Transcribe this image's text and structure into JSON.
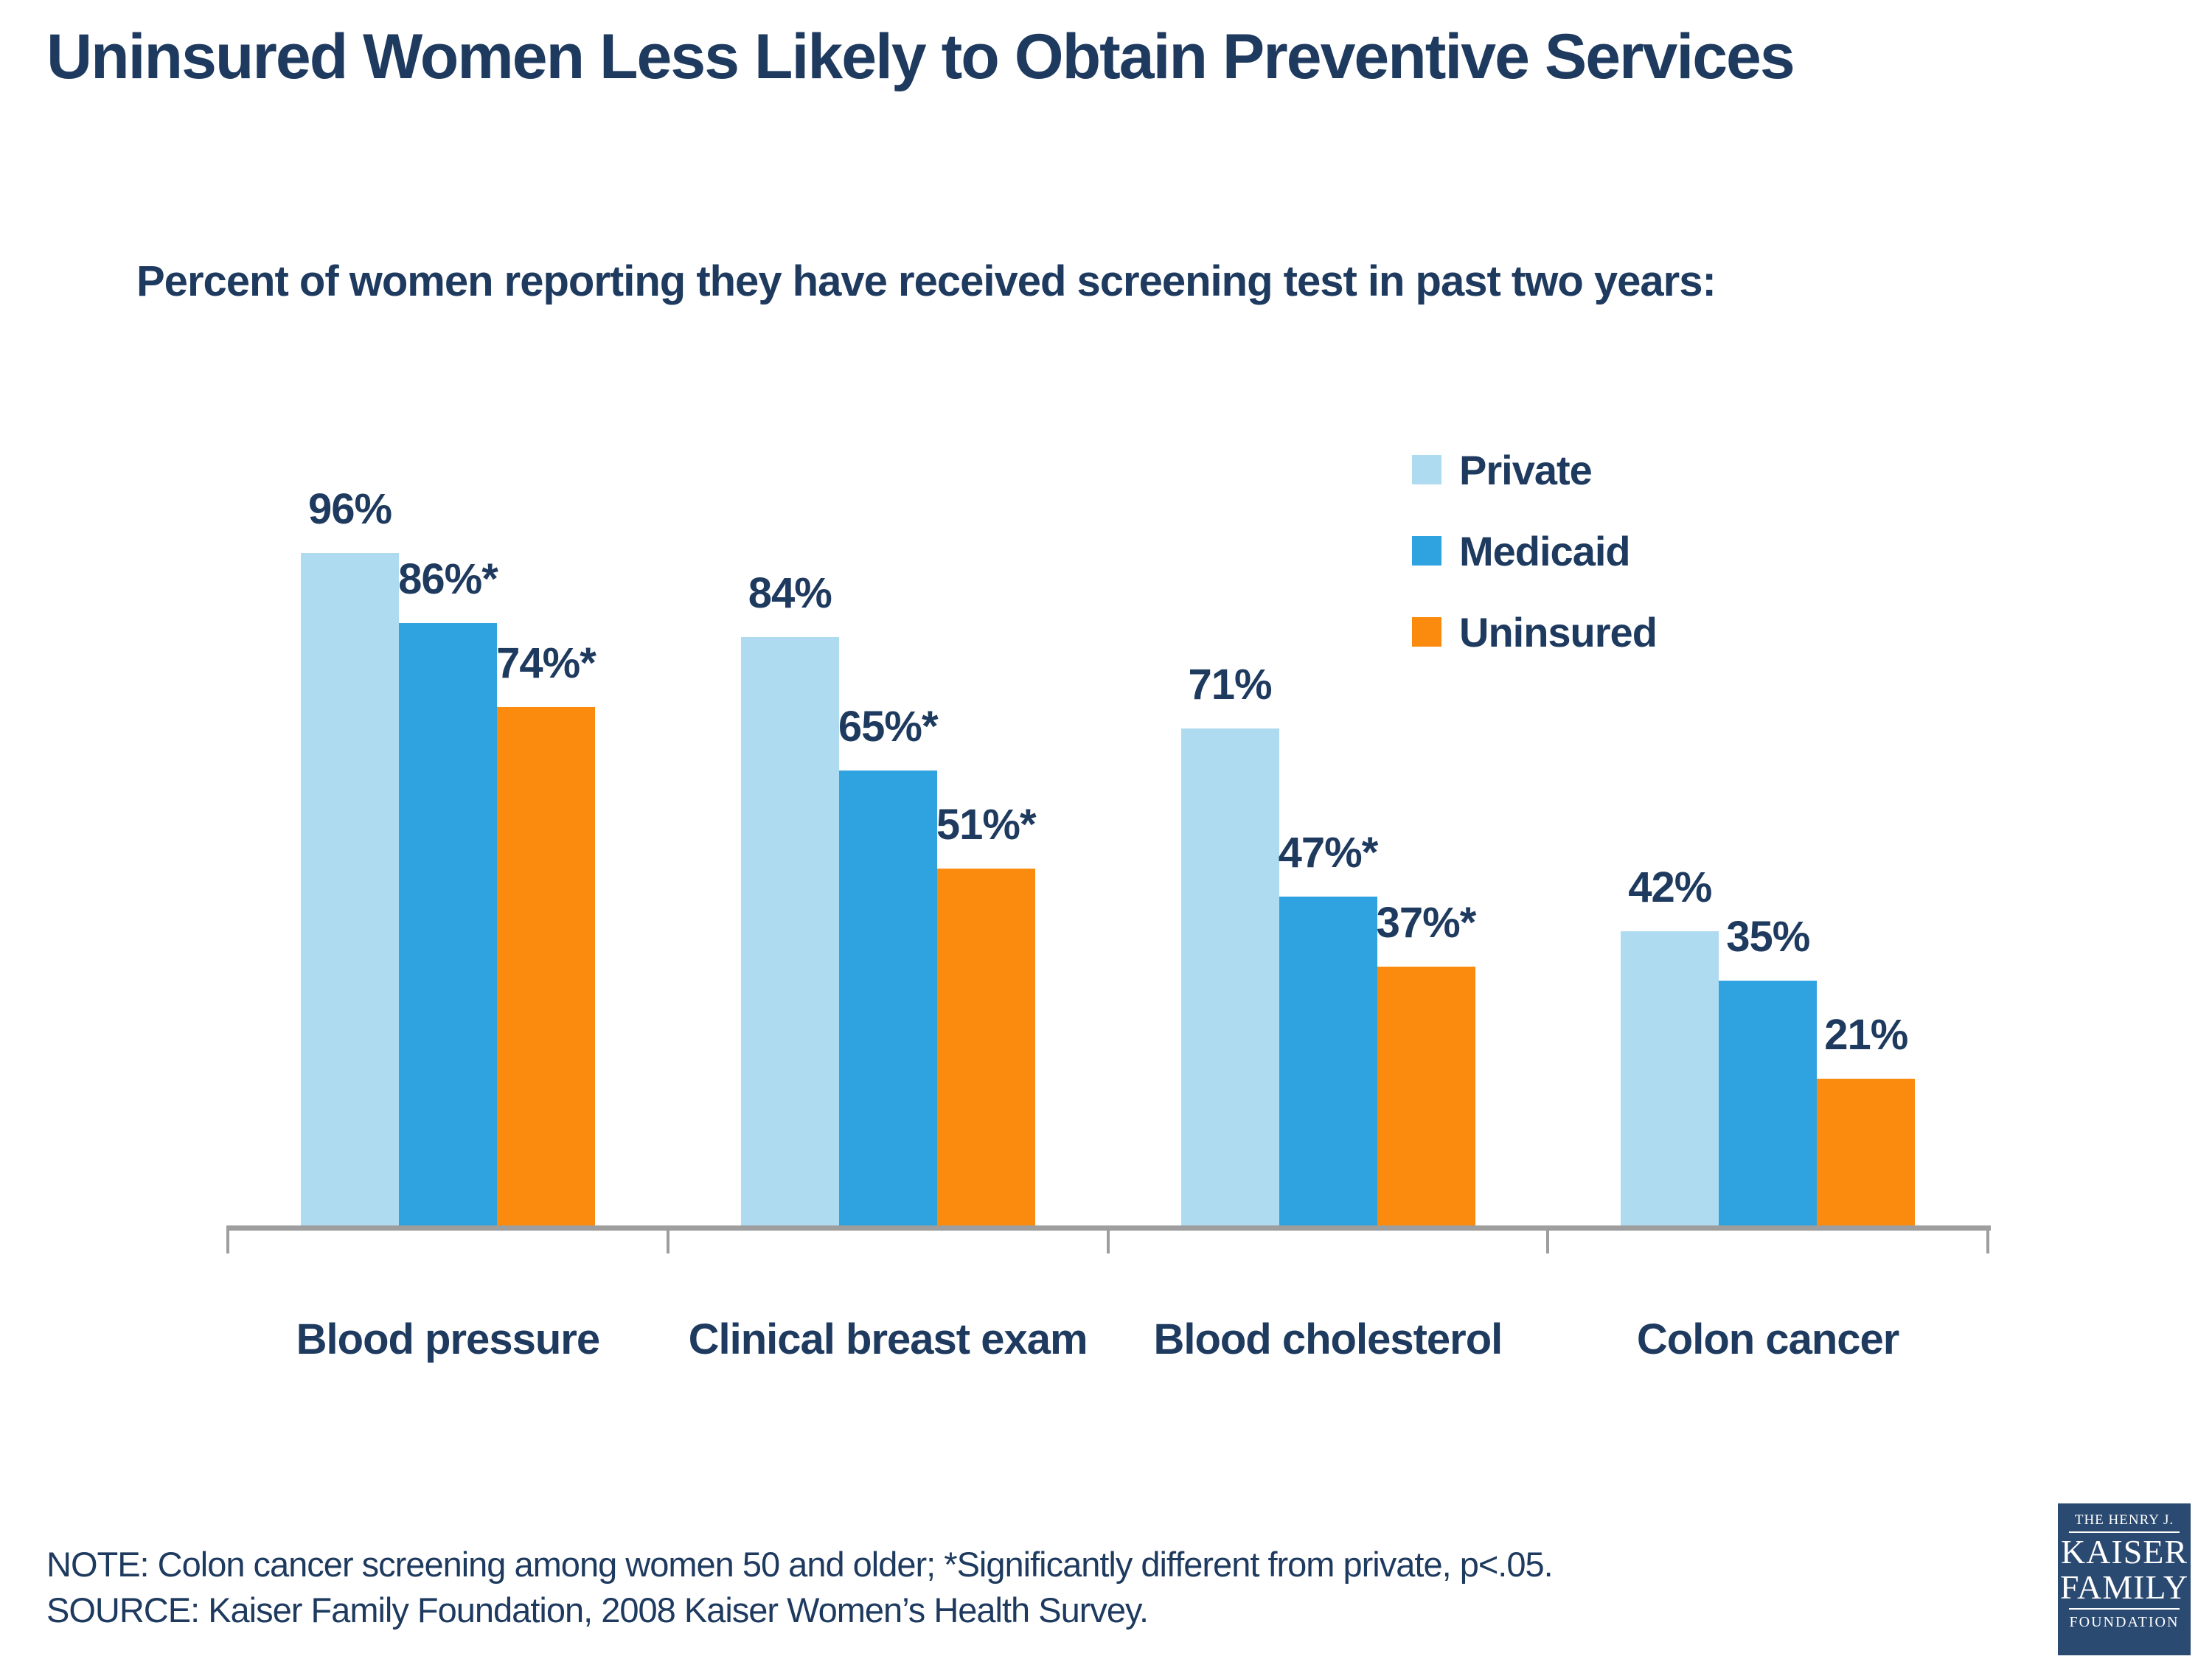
{
  "title": "Uninsured Women Less Likely to Obtain Preventive Services",
  "subtitle": "Percent of women reporting they have received screening test in past two years:",
  "note": "NOTE:  Colon cancer screening among women 50 and older; *Significantly different from private, p<.05.",
  "source": "SOURCE:  Kaiser Family Foundation, 2008 Kaiser Women’s Health Survey.",
  "colors": {
    "text_navy": "#1E3A5F",
    "axis_gray": "#9E9E9E",
    "private_light_blue": "#AEDBF0",
    "medicaid_blue": "#2FA3E0",
    "uninsured_orange": "#FB8B0E",
    "logo_background": "#2B4A72"
  },
  "logo": {
    "line1": "THE HENRY J.",
    "line2": "KAISER",
    "line3": "FAMILY",
    "line4": "FOUNDATION"
  },
  "chart_data": {
    "type": "bar",
    "title": "Uninsured Women Less Likely to Obtain Preventive Services",
    "subtitle": "Percent of women reporting they have received screening test in past two years:",
    "categories": [
      "Blood pressure",
      "Clinical breast exam",
      "Blood cholesterol",
      "Colon cancer"
    ],
    "series": [
      {
        "name": "Private",
        "color": "#AEDBF0",
        "values": [
          96,
          84,
          71,
          42
        ],
        "data_labels": [
          "96%",
          "84%",
          "71%",
          "42%"
        ]
      },
      {
        "name": "Medicaid",
        "color": "#2FA3E0",
        "values": [
          86,
          65,
          47,
          35
        ],
        "data_labels": [
          "86%*",
          "65%*",
          "47%*",
          "35%"
        ]
      },
      {
        "name": "Uninsured",
        "color": "#FB8B0E",
        "values": [
          74,
          51,
          37,
          21
        ],
        "data_labels": [
          "74%*",
          "51%*",
          "37%*",
          "21%"
        ]
      }
    ],
    "ylim": [
      0,
      100
    ],
    "grid": false,
    "y_axis_visible": false,
    "legend_position": "top-right",
    "value_suffix": "%"
  }
}
